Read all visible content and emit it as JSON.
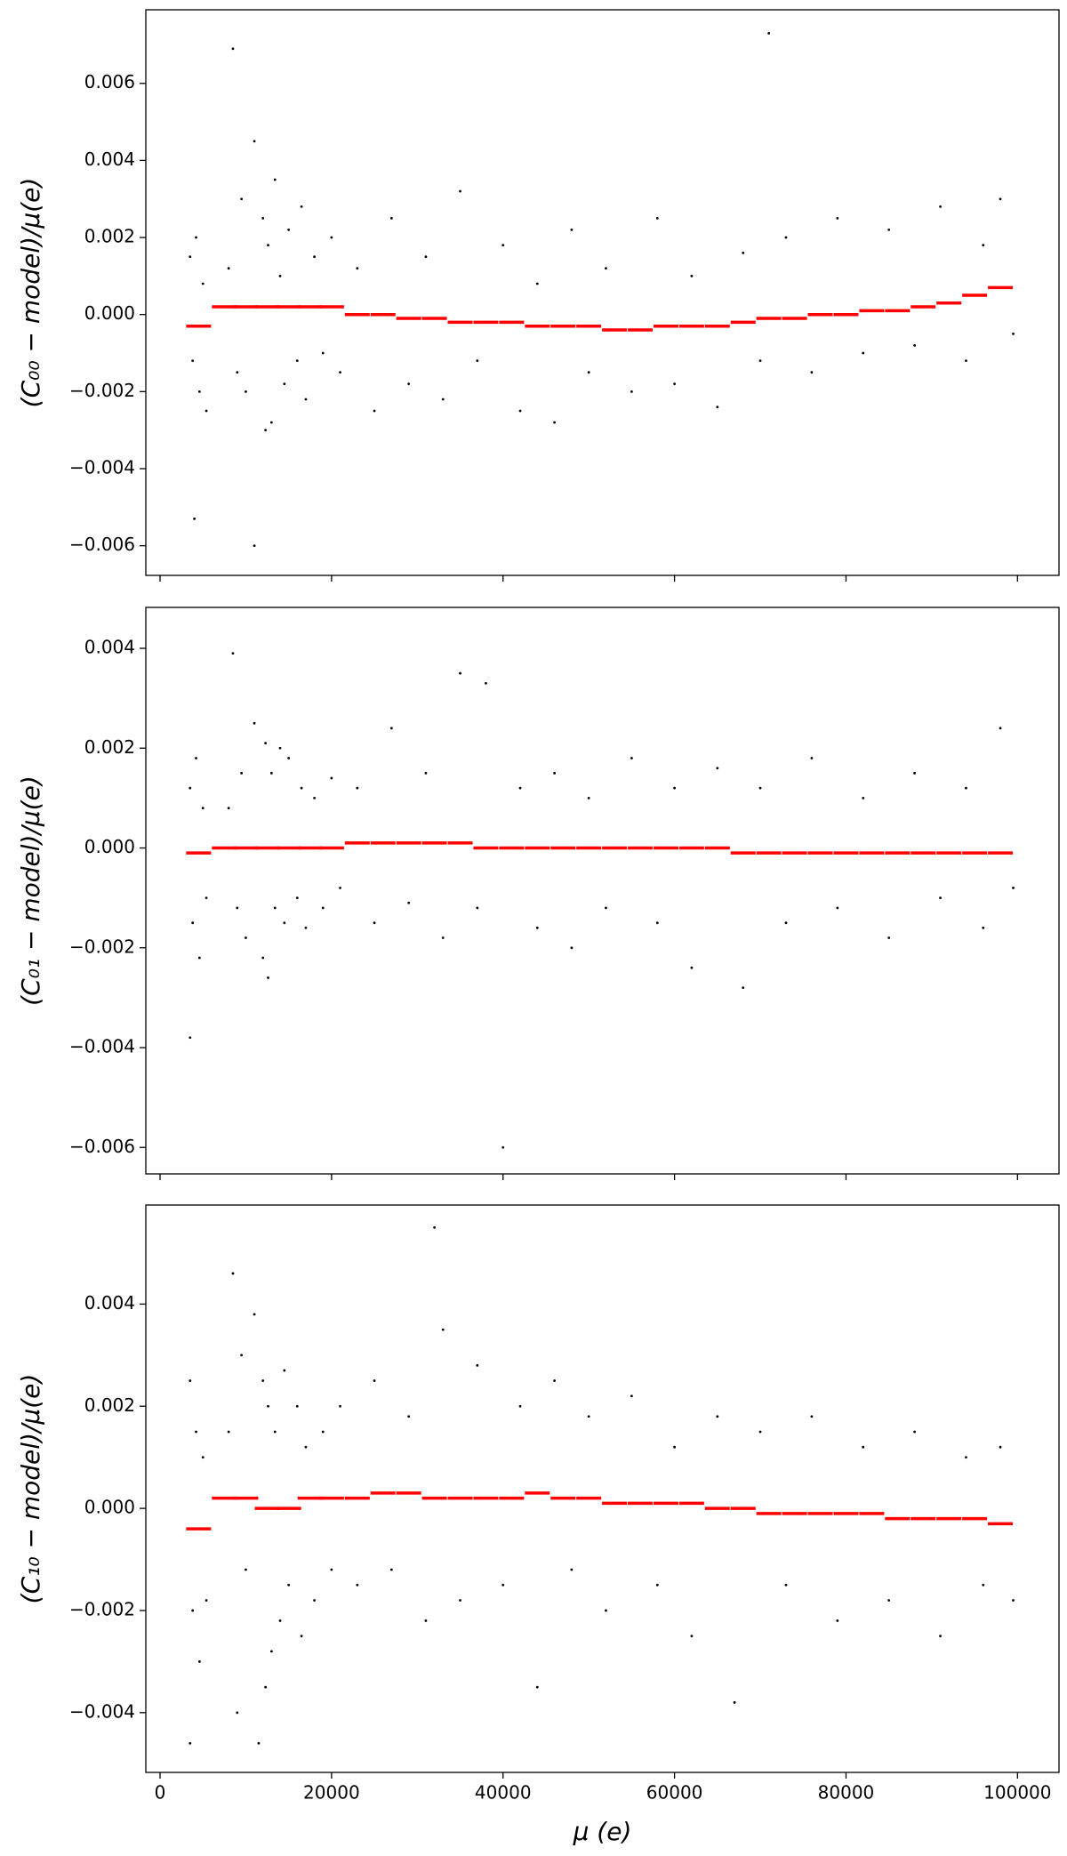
{
  "chart_data": [
    {
      "type": "scatter",
      "ylabel": "(C₀₀ − model)/μ(e)",
      "xlim": [
        -1660,
        104840
      ],
      "ylim": [
        -0.00677,
        0.00791
      ],
      "xticks": [
        0,
        20000,
        40000,
        60000,
        80000,
        100000
      ],
      "show_xtick_labels": false,
      "yticks": [
        {
          "value": -0.006,
          "label": "−0.006"
        },
        {
          "value": -0.004,
          "label": "−0.004"
        },
        {
          "value": -0.002,
          "label": "−0.002"
        },
        {
          "value": 0,
          "label": "0.000"
        },
        {
          "value": 0.002,
          "label": "0.002"
        },
        {
          "value": 0.004,
          "label": "0.004"
        },
        {
          "value": 0.006,
          "label": "0.006"
        }
      ],
      "series": [
        {
          "color": "#000000",
          "style": "points",
          "x": [
            3500,
            3800,
            4200,
            4600,
            5000,
            5400,
            4000,
            8000,
            8500,
            9000,
            9500,
            10000,
            11000,
            11000,
            12000,
            12300,
            12600,
            13000,
            13400,
            14000,
            14500,
            15000,
            16000,
            16500,
            17000,
            18000,
            19000,
            20000,
            21000,
            23000,
            25000,
            27000,
            29000,
            31000,
            33000,
            35000,
            37000,
            40000,
            42000,
            44000,
            46000,
            48000,
            50000,
            52000,
            55000,
            58000,
            60000,
            62000,
            65000,
            68000,
            70000,
            71000,
            73000,
            76000,
            79000,
            82000,
            85000,
            88000,
            91000,
            94000,
            96000,
            98000,
            99500
          ],
          "values": [
            0.0015,
            -0.0012,
            0.002,
            -0.002,
            0.0008,
            -0.0025,
            -0.0053,
            0.0012,
            0.0069,
            -0.0015,
            0.003,
            -0.002,
            0.0045,
            -0.006,
            0.0025,
            -0.003,
            0.0018,
            -0.0028,
            0.0035,
            0.001,
            -0.0018,
            0.0022,
            -0.0012,
            0.0028,
            -0.0022,
            0.0015,
            -0.001,
            0.002,
            -0.0015,
            0.0012,
            -0.0025,
            0.0025,
            -0.0018,
            0.0015,
            -0.0022,
            0.0032,
            -0.0012,
            0.0018,
            -0.0025,
            0.0008,
            -0.0028,
            0.0022,
            -0.0015,
            0.0012,
            -0.002,
            0.0025,
            -0.0018,
            0.001,
            -0.0024,
            0.0016,
            -0.0012,
            0.0073,
            0.002,
            -0.0015,
            0.0025,
            -0.001,
            0.0022,
            -0.0008,
            0.0028,
            -0.0012,
            0.0018,
            0.003,
            -0.0005
          ]
        },
        {
          "color": "#ff0000",
          "style": "step",
          "x": [
            4500,
            7500,
            10000,
            12500,
            15000,
            17500,
            20000,
            23000,
            26000,
            29000,
            32000,
            35000,
            38000,
            41000,
            44000,
            47000,
            50000,
            53000,
            56000,
            59000,
            62000,
            65000,
            68000,
            71000,
            74000,
            77000,
            80000,
            83000,
            86000,
            89000,
            92000,
            95000,
            98000
          ],
          "values": [
            -0.0003,
            0.0002,
            0.0002,
            0.0002,
            0.0002,
            0.0002,
            0.0002,
            0.0,
            0.0,
            -0.0001,
            -0.0001,
            -0.0002,
            -0.0002,
            -0.0002,
            -0.0003,
            -0.0003,
            -0.0003,
            -0.0004,
            -0.0004,
            -0.0003,
            -0.0003,
            -0.0003,
            -0.0002,
            -0.0001,
            -0.0001,
            0.0,
            0.0,
            0.0001,
            0.0001,
            0.0002,
            0.0003,
            0.0005,
            0.0007
          ]
        }
      ]
    },
    {
      "type": "scatter",
      "ylabel": "(C₀₁ − model)/μ(e)",
      "xlim": [
        -1660,
        104840
      ],
      "ylim": [
        -0.00653,
        0.00482
      ],
      "xticks": [
        0,
        20000,
        40000,
        60000,
        80000,
        100000
      ],
      "show_xtick_labels": false,
      "yticks": [
        {
          "value": -0.006,
          "label": "−0.006"
        },
        {
          "value": -0.004,
          "label": "−0.004"
        },
        {
          "value": -0.002,
          "label": "−0.002"
        },
        {
          "value": 0,
          "label": "0.000"
        },
        {
          "value": 0.002,
          "label": "0.002"
        },
        {
          "value": 0.004,
          "label": "0.004"
        }
      ],
      "series": [
        {
          "color": "#000000",
          "style": "points",
          "x": [
            3500,
            3800,
            4200,
            4600,
            5000,
            5400,
            3500,
            8000,
            8500,
            9000,
            9500,
            10000,
            11000,
            12000,
            12300,
            12600,
            13000,
            13400,
            14000,
            14500,
            15000,
            16000,
            16500,
            17000,
            18000,
            19000,
            20000,
            21000,
            23000,
            25000,
            27000,
            29000,
            31000,
            33000,
            35000,
            37000,
            38000,
            40000,
            42000,
            44000,
            46000,
            48000,
            50000,
            52000,
            55000,
            58000,
            60000,
            62000,
            65000,
            68000,
            70000,
            73000,
            76000,
            79000,
            82000,
            85000,
            88000,
            91000,
            94000,
            96000,
            98000,
            99500
          ],
          "values": [
            0.0012,
            -0.0015,
            0.0018,
            -0.0022,
            0.0008,
            -0.001,
            -0.0038,
            0.0008,
            0.0039,
            -0.0012,
            0.0015,
            -0.0018,
            0.0025,
            -0.0022,
            0.0021,
            -0.0026,
            0.0015,
            -0.0012,
            0.002,
            -0.0015,
            0.0018,
            -0.001,
            0.0012,
            -0.0016,
            0.001,
            -0.0012,
            0.0014,
            -0.0008,
            0.0012,
            -0.0015,
            0.0024,
            -0.0011,
            0.0015,
            -0.0018,
            0.0035,
            -0.0012,
            0.0033,
            -0.006,
            0.0012,
            -0.0016,
            0.0015,
            -0.002,
            0.001,
            -0.0012,
            0.0018,
            -0.0015,
            0.0012,
            -0.0024,
            0.0016,
            -0.0028,
            0.0012,
            -0.0015,
            0.0018,
            -0.0012,
            0.001,
            -0.0018,
            0.0015,
            -0.001,
            0.0012,
            -0.0016,
            0.0024,
            -0.0008
          ]
        },
        {
          "color": "#ff0000",
          "style": "step",
          "x": [
            4500,
            7500,
            10000,
            12500,
            15000,
            17500,
            20000,
            23000,
            26000,
            29000,
            32000,
            35000,
            38000,
            41000,
            44000,
            47000,
            50000,
            53000,
            56000,
            59000,
            62000,
            65000,
            68000,
            71000,
            74000,
            77000,
            80000,
            83000,
            86000,
            89000,
            92000,
            95000,
            98000
          ],
          "values": [
            -0.0001,
            0.0,
            0.0,
            0.0,
            0.0,
            0.0,
            0.0,
            0.0001,
            0.0001,
            0.0001,
            0.0001,
            0.0001,
            0.0,
            0.0,
            0.0,
            0.0,
            0.0,
            0.0,
            0.0,
            0.0,
            0.0,
            0.0,
            -0.0001,
            -0.0001,
            -0.0001,
            -0.0001,
            -0.0001,
            -0.0001,
            -0.0001,
            -0.0001,
            -0.0001,
            -0.0001,
            -0.0001
          ]
        }
      ]
    },
    {
      "type": "scatter",
      "ylabel": "(C₁₀ − model)/μ(e)",
      "xlabel": "μ (e)",
      "xlim": [
        -1660,
        104840
      ],
      "ylim": [
        -0.00517,
        0.00594
      ],
      "xticks": [
        0,
        20000,
        40000,
        60000,
        80000,
        100000
      ],
      "show_xtick_labels": true,
      "yticks": [
        {
          "value": -0.004,
          "label": "−0.004"
        },
        {
          "value": -0.002,
          "label": "−0.002"
        },
        {
          "value": 0,
          "label": "0.000"
        },
        {
          "value": 0.002,
          "label": "0.002"
        },
        {
          "value": 0.004,
          "label": "0.004"
        }
      ],
      "series": [
        {
          "color": "#000000",
          "style": "points",
          "x": [
            3500,
            3800,
            4200,
            4600,
            5000,
            5400,
            3500,
            8000,
            8500,
            9000,
            9500,
            10000,
            11000,
            11500,
            12000,
            12300,
            12600,
            13000,
            13400,
            14000,
            14500,
            15000,
            16000,
            16500,
            17000,
            18000,
            19000,
            20000,
            21000,
            23000,
            25000,
            27000,
            29000,
            31000,
            32000,
            33000,
            35000,
            37000,
            40000,
            42000,
            44000,
            46000,
            48000,
            50000,
            52000,
            55000,
            58000,
            60000,
            62000,
            65000,
            67000,
            70000,
            73000,
            76000,
            79000,
            82000,
            85000,
            88000,
            91000,
            94000,
            96000,
            98000,
            99500
          ],
          "values": [
            0.0025,
            -0.002,
            0.0015,
            -0.003,
            0.001,
            -0.0018,
            -0.0046,
            0.0015,
            0.0046,
            -0.004,
            0.003,
            -0.0012,
            0.0038,
            -0.0046,
            0.0025,
            -0.0035,
            0.002,
            -0.0028,
            0.0015,
            -0.0022,
            0.0027,
            -0.0015,
            0.002,
            -0.0025,
            0.0012,
            -0.0018,
            0.0015,
            -0.0012,
            0.002,
            -0.0015,
            0.0025,
            -0.0012,
            0.0018,
            -0.0022,
            0.0055,
            0.0035,
            -0.0018,
            0.0028,
            -0.0015,
            0.002,
            -0.0035,
            0.0025,
            -0.0012,
            0.0018,
            -0.002,
            0.0022,
            -0.0015,
            0.0012,
            -0.0025,
            0.0018,
            -0.0038,
            0.0015,
            -0.0015,
            0.0018,
            -0.0022,
            0.0012,
            -0.0018,
            0.0015,
            -0.0025,
            0.001,
            -0.0015,
            0.0012,
            -0.0018
          ]
        },
        {
          "color": "#ff0000",
          "style": "step",
          "x": [
            4500,
            7500,
            10000,
            12500,
            15000,
            17500,
            20000,
            23000,
            26000,
            29000,
            32000,
            35000,
            38000,
            41000,
            44000,
            47000,
            50000,
            53000,
            56000,
            59000,
            62000,
            65000,
            68000,
            71000,
            74000,
            77000,
            80000,
            83000,
            86000,
            89000,
            92000,
            95000,
            98000
          ],
          "values": [
            -0.0004,
            0.0002,
            0.0002,
            0.0,
            0.0,
            0.0002,
            0.0002,
            0.0002,
            0.0003,
            0.0003,
            0.0002,
            0.0002,
            0.0002,
            0.0002,
            0.0003,
            0.0002,
            0.0002,
            0.0001,
            0.0001,
            0.0001,
            0.0001,
            0.0,
            0.0,
            -0.0001,
            -0.0001,
            -0.0001,
            -0.0001,
            -0.0001,
            -0.0002,
            -0.0002,
            -0.0002,
            -0.0002,
            -0.0003
          ]
        }
      ]
    }
  ]
}
